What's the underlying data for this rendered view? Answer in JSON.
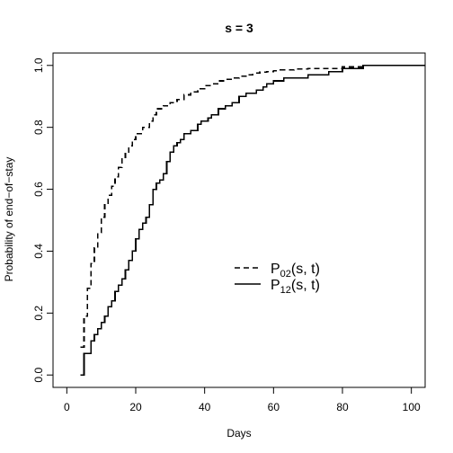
{
  "chart_data": {
    "type": "line",
    "step": true,
    "title": "s = 3",
    "xlabel": "Days",
    "ylabel": "Probability of end−of−stay",
    "xlim": [
      -4,
      104
    ],
    "ylim": [
      -0.04,
      1.04
    ],
    "xticks": [
      0,
      20,
      40,
      60,
      80,
      100
    ],
    "yticks": [
      0.0,
      0.2,
      0.4,
      0.6,
      0.8,
      1.0
    ],
    "xtick_labels": [
      "0",
      "20",
      "40",
      "60",
      "80",
      "100"
    ],
    "ytick_labels": [
      "0.0",
      "0.2",
      "0.4",
      "0.6",
      "0.8",
      "1.0"
    ],
    "grid": false,
    "legend_position": "center-right",
    "series": [
      {
        "legend_main": "P",
        "legend_sub": "02",
        "legend_args": "(s, t)",
        "line_style": "dashed",
        "x": [
          4,
          5,
          6,
          7,
          8,
          9,
          10,
          11,
          12,
          13,
          14,
          15,
          16,
          17,
          18,
          19,
          20,
          22,
          24,
          25,
          26,
          28,
          30,
          32,
          34,
          36,
          38,
          40,
          42,
          44,
          46,
          48,
          50,
          52,
          54,
          56,
          58,
          60,
          62,
          66,
          70,
          80,
          86,
          104
        ],
        "y": [
          0.09,
          0.19,
          0.28,
          0.36,
          0.41,
          0.46,
          0.51,
          0.55,
          0.58,
          0.61,
          0.64,
          0.67,
          0.7,
          0.72,
          0.74,
          0.76,
          0.78,
          0.8,
          0.82,
          0.84,
          0.86,
          0.87,
          0.88,
          0.89,
          0.905,
          0.915,
          0.925,
          0.935,
          0.94,
          0.95,
          0.955,
          0.96,
          0.965,
          0.97,
          0.975,
          0.978,
          0.98,
          0.983,
          0.985,
          0.988,
          0.99,
          0.995,
          1.0,
          1.0
        ]
      },
      {
        "legend_main": "P",
        "legend_sub": "12",
        "legend_args": "(s, t)",
        "line_style": "solid",
        "x": [
          4,
          5,
          7,
          8,
          9,
          10,
          11,
          12,
          13,
          14,
          15,
          16,
          17,
          18,
          19,
          20,
          21,
          22,
          23,
          24,
          25,
          26,
          27,
          28,
          29,
          30,
          31,
          32,
          33,
          34,
          36,
          38,
          39,
          41,
          42,
          44,
          46,
          48,
          50,
          52,
          55,
          57,
          58,
          60,
          63,
          66,
          70,
          76,
          80,
          86,
          104
        ],
        "y": [
          0.0,
          0.07,
          0.11,
          0.13,
          0.15,
          0.17,
          0.19,
          0.22,
          0.24,
          0.27,
          0.29,
          0.31,
          0.34,
          0.37,
          0.4,
          0.44,
          0.47,
          0.49,
          0.51,
          0.55,
          0.6,
          0.62,
          0.63,
          0.65,
          0.69,
          0.72,
          0.74,
          0.75,
          0.76,
          0.78,
          0.79,
          0.81,
          0.82,
          0.83,
          0.84,
          0.86,
          0.87,
          0.88,
          0.9,
          0.91,
          0.92,
          0.93,
          0.94,
          0.95,
          0.96,
          0.96,
          0.97,
          0.98,
          0.99,
          1.0,
          1.0
        ]
      }
    ]
  }
}
